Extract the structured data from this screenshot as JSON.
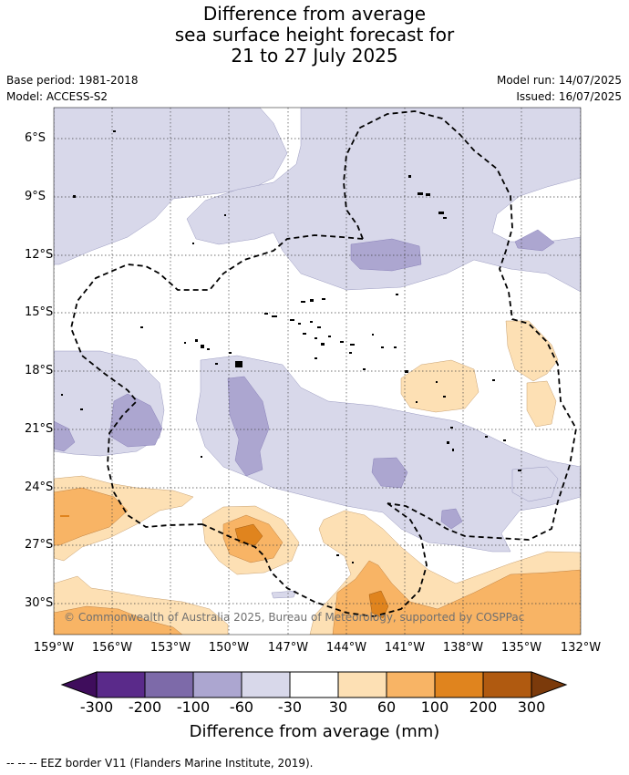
{
  "title_lines": [
    "Difference from average",
    "sea surface height forecast for",
    "21 to 27 July 2025"
  ],
  "base_period": "Base period: 1981-2018",
  "model": "Model: ACCESS-S2",
  "model_run": "Model run: 14/07/2025",
  "issued": "Issued: 16/07/2025",
  "copyright": "© Commonwealth of Australia 2025, Bureau of Meteorology, supported by COSPPac",
  "footer": "--  --  -- EEZ border V11 (Flanders Marine Institute, 2019).",
  "lat_labels": [
    "6°S",
    "9°S",
    "12°S",
    "15°S",
    "18°S",
    "21°S",
    "24°S",
    "27°S",
    "30°S"
  ],
  "lon_labels": [
    "159°W",
    "156°W",
    "153°W",
    "150°W",
    "147°W",
    "144°W",
    "141°W",
    "138°W",
    "135°W",
    "132°W"
  ],
  "colorbar": {
    "title": "Difference from average (mm)",
    "tick_labels": [
      "-300",
      "-200",
      "-100",
      "-60",
      "-30",
      "30",
      "60",
      "100",
      "200",
      "300"
    ],
    "colors": [
      "#3f0d5c",
      "#5a2a8a",
      "#7d6aa9",
      "#aca6d0",
      "#d8d8ea",
      "#ffffff",
      "#fde0b4",
      "#f8b465",
      "#e0841e",
      "#b05a10",
      "#7b3a0b"
    ]
  }
}
